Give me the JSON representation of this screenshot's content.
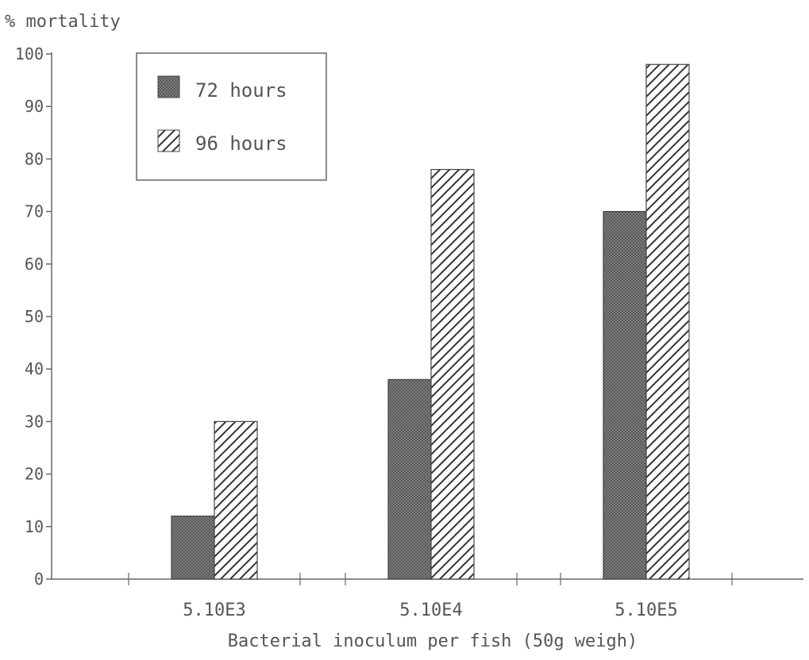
{
  "chart_data": {
    "type": "bar",
    "title": "",
    "ylabel": "% mortality",
    "xlabel": "Bacterial inoculum per fish (50g weigh)",
    "categories": [
      "5.10E3",
      "5.10E4",
      "5.10E5"
    ],
    "series": [
      {
        "name": "72 hours",
        "values": [
          12,
          38,
          70
        ],
        "pattern": "crosshatch",
        "color": "#777777"
      },
      {
        "name": "96 hours",
        "values": [
          30,
          78,
          98
        ],
        "pattern": "diagonal-hatch",
        "color": "#333333"
      }
    ],
    "ylim": [
      0,
      100
    ],
    "yticks": [
      "0",
      "10",
      "20",
      "30",
      "40",
      "50",
      "60",
      "70",
      "80",
      "90",
      "100"
    ],
    "grid": false,
    "legend_position": "top-left"
  }
}
